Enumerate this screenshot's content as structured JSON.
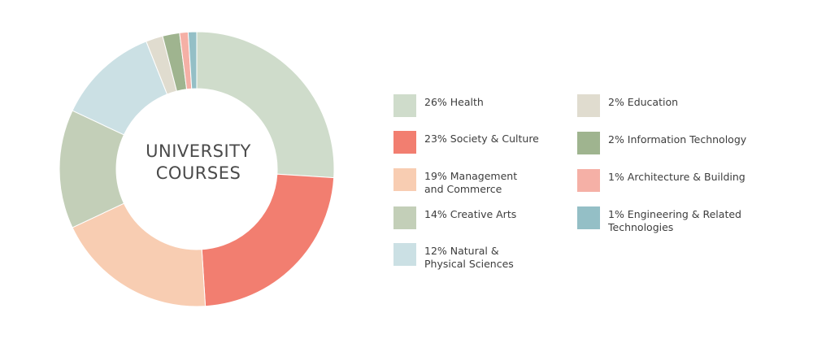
{
  "chart_data": {
    "type": "pie",
    "title_lines": [
      "UNIVERSITY",
      "COURSES"
    ],
    "series": [
      {
        "values": [
          26,
          23,
          19,
          14,
          12,
          2,
          2,
          1,
          1
        ],
        "labels": [
          "Health",
          "Society & Culture",
          "Management and Commerce",
          "Creative Arts",
          "Natural & Physical Sciences",
          "Education",
          "Information Technology",
          "Architecture & Building",
          "Engineering & Related Technologies"
        ],
        "colors": [
          "#cfdccb",
          "#f27e70",
          "#f8cdb2",
          "#c3cfb8",
          "#cbe0e4",
          "#e0dccf",
          "#9fb48f",
          "#f5b0a6",
          "#94bfc6"
        ]
      }
    ],
    "legend": [
      {
        "text": "26% Health",
        "color": "#cfdccb"
      },
      {
        "text": "23% Society & Culture",
        "color": "#f27e70"
      },
      {
        "text": "19% Management and Commerce",
        "color": "#f8cdb2"
      },
      {
        "text": "14% Creative Arts",
        "color": "#c3cfb8"
      },
      {
        "text": "12% Natural & Physical Sciences",
        "color": "#cbe0e4"
      },
      {
        "text": "2% Education",
        "color": "#e0dccf"
      },
      {
        "text": "2% Information Technology",
        "color": "#9fb48f"
      },
      {
        "text": "1% Architecture & Building",
        "color": "#f5b0a6"
      },
      {
        "text": "1% Engineering & Related Technologies",
        "color": "#94bfc6"
      }
    ],
    "legend_placement": "right"
  }
}
